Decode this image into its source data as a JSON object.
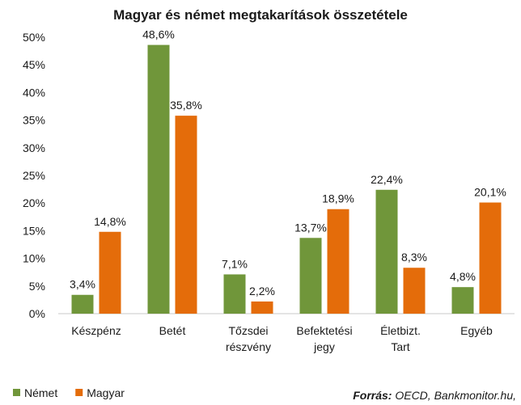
{
  "chart_data": {
    "type": "bar",
    "title": "Magyar és német megtakarítások összetétele",
    "categories": [
      [
        "Készpénz"
      ],
      [
        "Betét"
      ],
      [
        "Tőzsdei",
        "részvény"
      ],
      [
        "Befektetési",
        "jegy"
      ],
      [
        "Életbizt.",
        "Tart"
      ],
      [
        "Egyéb"
      ]
    ],
    "series": [
      {
        "name": "Német",
        "color": "#70963a",
        "values": [
          3.4,
          48.6,
          7.1,
          13.7,
          22.4,
          4.8
        ],
        "labels": [
          "3,4%",
          "48,6%",
          "7,1%",
          "13,7%",
          "22,4%",
          "4,8%"
        ]
      },
      {
        "name": "Magyar",
        "color": "#e46c0a",
        "values": [
          14.8,
          35.8,
          2.2,
          18.9,
          8.3,
          20.1
        ],
        "labels": [
          "14,8%",
          "35,8%",
          "2,2%",
          "18,9%",
          "8,3%",
          "20,1%"
        ]
      }
    ],
    "yticks": [
      "0%",
      "5%",
      "10%",
      "15%",
      "20%",
      "25%",
      "30%",
      "35%",
      "40%",
      "45%",
      "50%"
    ],
    "ylim": [
      0,
      50
    ],
    "grid": false,
    "legend": "bottom-left",
    "source_label": "Forrás:",
    "source_text": " OECD, Bankmonitor.hu,"
  }
}
